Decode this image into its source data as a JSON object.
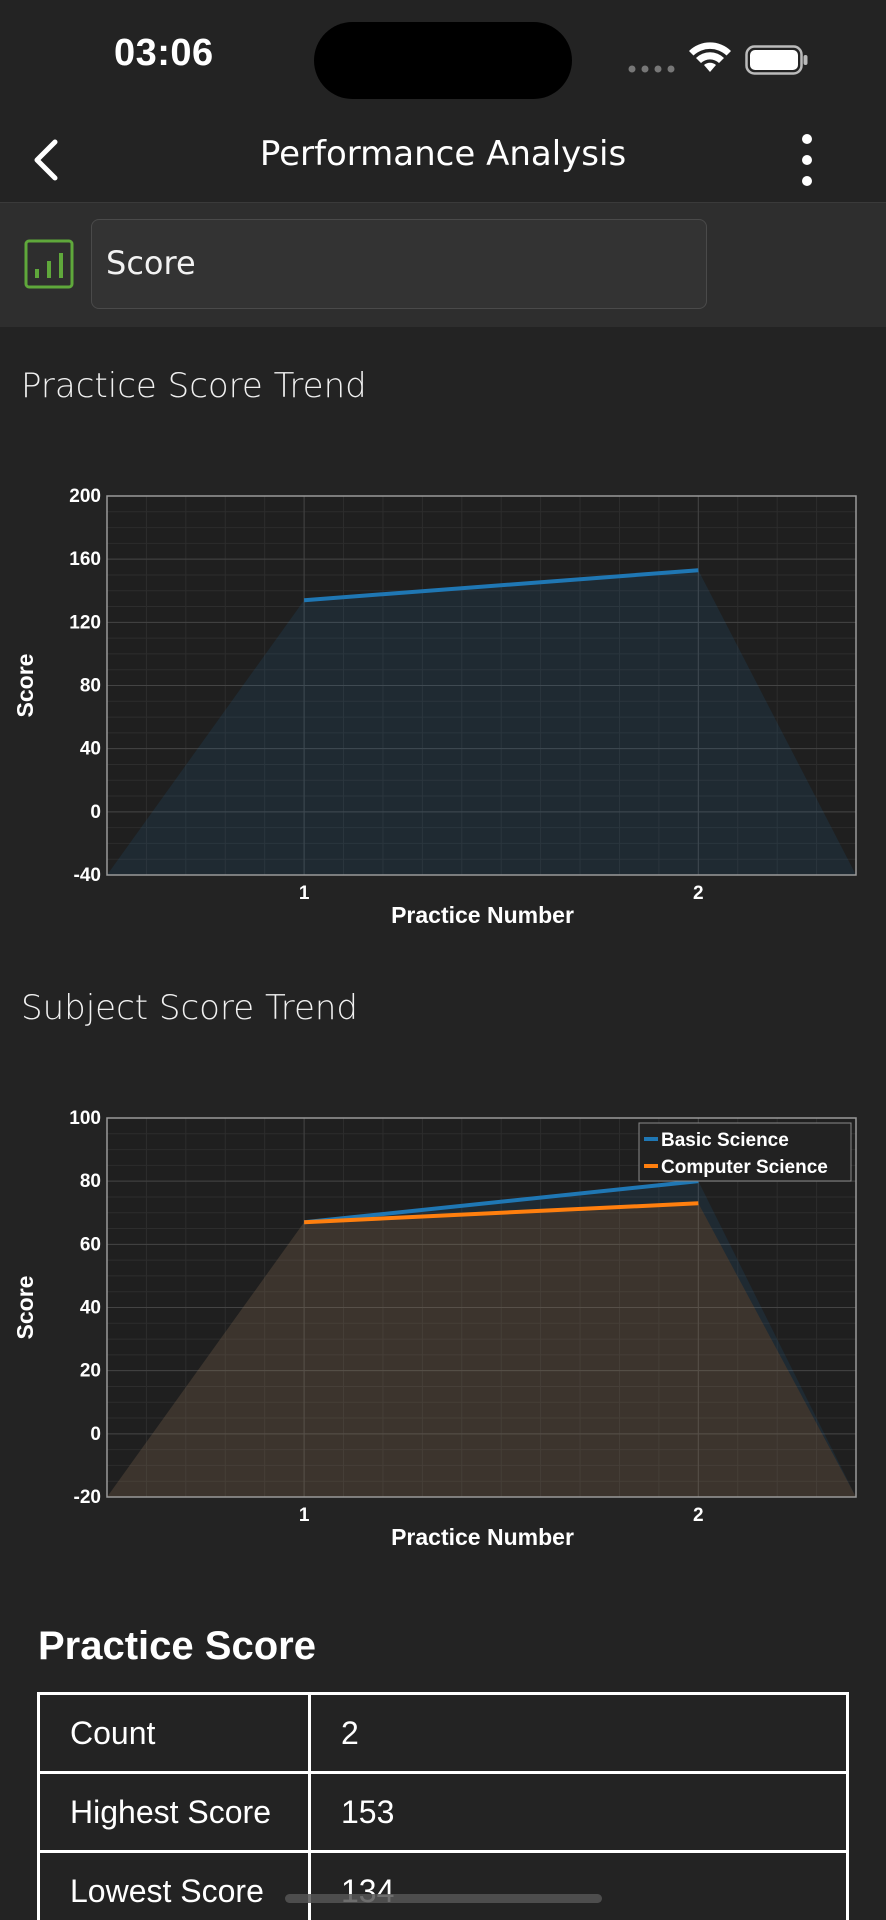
{
  "status_bar": {
    "time": "03:06",
    "icons": [
      "signal-icon",
      "wifi-icon",
      "battery-icon"
    ]
  },
  "nav": {
    "title": "Performance Analysis",
    "back_icon": "chevron-left-icon",
    "menu_icon": "more-vertical-icon"
  },
  "selector": {
    "icon": "bar-chart-icon",
    "value": "Score",
    "accent": "#5fa83b"
  },
  "sections": {
    "practice_trend": "Practice Score Trend",
    "subject_trend": "Subject Score Trend"
  },
  "chart_data": [
    {
      "type": "line",
      "title": "",
      "xlabel": "Practice Number",
      "ylabel": "Score",
      "x": [
        1,
        2
      ],
      "xticks": [
        "1",
        "2"
      ],
      "yticks": [
        "-40",
        "0",
        "40",
        "80",
        "120",
        "160",
        "200"
      ],
      "ylim": [
        -40,
        200
      ],
      "grid": true,
      "series": [
        {
          "values": [
            134,
            153
          ],
          "color": "#1f77b4"
        }
      ]
    },
    {
      "type": "line",
      "title": "",
      "xlabel": "Practice Number",
      "ylabel": "Score",
      "x": [
        1,
        2
      ],
      "xticks": [
        "1",
        "2"
      ],
      "yticks": [
        "-20",
        "0",
        "20",
        "40",
        "60",
        "80",
        "100"
      ],
      "ylim": [
        -20,
        100
      ],
      "grid": true,
      "legend_position": "top-right",
      "series": [
        {
          "name": "Basic Science",
          "values": [
            67,
            80
          ],
          "color": "#1f77b4"
        },
        {
          "name": "Computer Science",
          "values": [
            67,
            73
          ],
          "color": "#ff7f0e"
        }
      ]
    }
  ],
  "practice_score": {
    "title": "Practice Score",
    "rows": [
      {
        "label": "Count",
        "value": "2"
      },
      {
        "label": "Highest Score",
        "value": "153"
      },
      {
        "label": "Lowest Score",
        "value": "134"
      }
    ]
  }
}
